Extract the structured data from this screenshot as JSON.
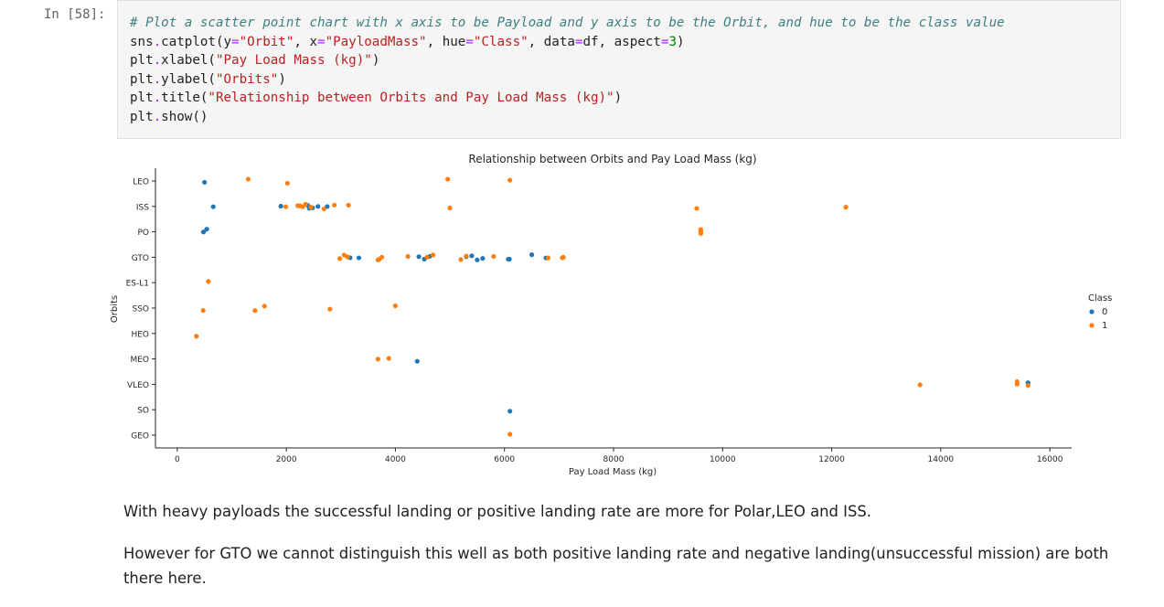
{
  "cell": {
    "prompt": "In [58]:",
    "code_lines": [
      [
        {
          "t": "# Plot a scatter point chart with x axis to be Payload and y axis to be the Orbit, and hue to be the class value",
          "c": "comment"
        }
      ],
      [
        {
          "t": "sns",
          "c": "name"
        },
        {
          "t": ".",
          "c": "op"
        },
        {
          "t": "catplot(y",
          "c": "name"
        },
        {
          "t": "=",
          "c": "op"
        },
        {
          "t": "\"Orbit\"",
          "c": "str"
        },
        {
          "t": ", x",
          "c": "name"
        },
        {
          "t": "=",
          "c": "op"
        },
        {
          "t": "\"PayloadMass\"",
          "c": "str"
        },
        {
          "t": ", hue",
          "c": "name"
        },
        {
          "t": "=",
          "c": "op"
        },
        {
          "t": "\"Class\"",
          "c": "str"
        },
        {
          "t": ", data",
          "c": "name"
        },
        {
          "t": "=",
          "c": "op"
        },
        {
          "t": "df, aspect",
          "c": "name"
        },
        {
          "t": "=",
          "c": "op"
        },
        {
          "t": "3",
          "c": "num"
        },
        {
          "t": ")",
          "c": "name"
        }
      ],
      [
        {
          "t": "plt",
          "c": "name"
        },
        {
          "t": ".",
          "c": "op"
        },
        {
          "t": "xlabel(",
          "c": "name"
        },
        {
          "t": "\"Pay Load Mass (kg)\"",
          "c": "str"
        },
        {
          "t": ")",
          "c": "name"
        }
      ],
      [
        {
          "t": "plt",
          "c": "name"
        },
        {
          "t": ".",
          "c": "op"
        },
        {
          "t": "ylabel(",
          "c": "name"
        },
        {
          "t": "\"Orbits\"",
          "c": "str"
        },
        {
          "t": ")",
          "c": "name"
        }
      ],
      [
        {
          "t": "plt",
          "c": "name"
        },
        {
          "t": ".",
          "c": "op"
        },
        {
          "t": "title(",
          "c": "name"
        },
        {
          "t": "\"Relationship between Orbits and Pay Load Mass (kg)\"",
          "c": "str"
        },
        {
          "t": ")",
          "c": "name"
        }
      ],
      [
        {
          "t": "plt",
          "c": "name"
        },
        {
          "t": ".",
          "c": "op"
        },
        {
          "t": "show()",
          "c": "name"
        }
      ]
    ]
  },
  "chart_data": {
    "type": "scatter",
    "title": "Relationship between Orbits and Pay Load Mass (kg)",
    "xlabel": "Pay Load Mass (kg)",
    "ylabel": "Orbits",
    "xlim": [
      -400,
      16400
    ],
    "xticks": [
      0,
      2000,
      4000,
      6000,
      8000,
      10000,
      12000,
      14000,
      16000
    ],
    "categories": [
      "LEO",
      "ISS",
      "PO",
      "GTO",
      "ES-L1",
      "SSO",
      "HEO",
      "MEO",
      "VLEO",
      "SO",
      "GEO"
    ],
    "grid": false,
    "legend": {
      "title": "Class",
      "placement": "right",
      "entries": [
        "0",
        "1"
      ]
    },
    "colors": {
      "0": "#1f77b4",
      "1": "#ff7f0e"
    },
    "series": [
      {
        "name": "0",
        "points": [
          {
            "x": 500,
            "y": "LEO"
          },
          {
            "x": 660,
            "y": "ISS"
          },
          {
            "x": 1900,
            "y": "ISS"
          },
          {
            "x": 2390,
            "y": "ISS"
          },
          {
            "x": 2420,
            "y": "ISS"
          },
          {
            "x": 2480,
            "y": "ISS"
          },
          {
            "x": 2580,
            "y": "ISS"
          },
          {
            "x": 2750,
            "y": "ISS"
          },
          {
            "x": 480,
            "y": "PO"
          },
          {
            "x": 540,
            "y": "PO"
          },
          {
            "x": 3170,
            "y": "GTO"
          },
          {
            "x": 3330,
            "y": "GTO"
          },
          {
            "x": 4430,
            "y": "GTO"
          },
          {
            "x": 4530,
            "y": "GTO"
          },
          {
            "x": 4630,
            "y": "GTO"
          },
          {
            "x": 5300,
            "y": "GTO"
          },
          {
            "x": 5400,
            "y": "GTO"
          },
          {
            "x": 5500,
            "y": "GTO"
          },
          {
            "x": 5600,
            "y": "GTO"
          },
          {
            "x": 6070,
            "y": "GTO"
          },
          {
            "x": 6090,
            "y": "GTO"
          },
          {
            "x": 6500,
            "y": "GTO"
          },
          {
            "x": 6760,
            "y": "GTO"
          },
          {
            "x": 4400,
            "y": "MEO"
          },
          {
            "x": 15600,
            "y": "VLEO"
          },
          {
            "x": 6100,
            "y": "SO"
          }
        ]
      },
      {
        "name": "1",
        "points": [
          {
            "x": 1300,
            "y": "LEO"
          },
          {
            "x": 2020,
            "y": "LEO"
          },
          {
            "x": 4960,
            "y": "LEO"
          },
          {
            "x": 6100,
            "y": "LEO"
          },
          {
            "x": 1990,
            "y": "ISS"
          },
          {
            "x": 2210,
            "y": "ISS"
          },
          {
            "x": 2250,
            "y": "ISS"
          },
          {
            "x": 2300,
            "y": "ISS"
          },
          {
            "x": 2350,
            "y": "ISS"
          },
          {
            "x": 2450,
            "y": "ISS"
          },
          {
            "x": 2690,
            "y": "ISS"
          },
          {
            "x": 2880,
            "y": "ISS"
          },
          {
            "x": 3140,
            "y": "ISS"
          },
          {
            "x": 5000,
            "y": "ISS"
          },
          {
            "x": 9525,
            "y": "ISS"
          },
          {
            "x": 12260,
            "y": "ISS"
          },
          {
            "x": 9600,
            "y": "PO"
          },
          {
            "x": 9600,
            "y": "PO"
          },
          {
            "x": 9600,
            "y": "PO"
          },
          {
            "x": 2980,
            "y": "GTO"
          },
          {
            "x": 3060,
            "y": "GTO"
          },
          {
            "x": 3120,
            "y": "GTO"
          },
          {
            "x": 3680,
            "y": "GTO"
          },
          {
            "x": 3700,
            "y": "GTO"
          },
          {
            "x": 3750,
            "y": "GTO"
          },
          {
            "x": 4230,
            "y": "GTO"
          },
          {
            "x": 4580,
            "y": "GTO"
          },
          {
            "x": 4690,
            "y": "GTO"
          },
          {
            "x": 5200,
            "y": "GTO"
          },
          {
            "x": 5300,
            "y": "GTO"
          },
          {
            "x": 5800,
            "y": "GTO"
          },
          {
            "x": 6800,
            "y": "GTO"
          },
          {
            "x": 7060,
            "y": "GTO"
          },
          {
            "x": 7080,
            "y": "GTO"
          },
          {
            "x": 570,
            "y": "ES-L1"
          },
          {
            "x": 475,
            "y": "SSO"
          },
          {
            "x": 1425,
            "y": "SSO"
          },
          {
            "x": 1600,
            "y": "SSO"
          },
          {
            "x": 2800,
            "y": "SSO"
          },
          {
            "x": 4000,
            "y": "SSO"
          },
          {
            "x": 350,
            "y": "HEO"
          },
          {
            "x": 3680,
            "y": "MEO"
          },
          {
            "x": 3880,
            "y": "MEO"
          },
          {
            "x": 13620,
            "y": "VLEO"
          },
          {
            "x": 15400,
            "y": "VLEO"
          },
          {
            "x": 15400,
            "y": "VLEO"
          },
          {
            "x": 15400,
            "y": "VLEO"
          },
          {
            "x": 15600,
            "y": "VLEO"
          },
          {
            "x": 6100,
            "y": "GEO"
          }
        ]
      }
    ]
  },
  "markdown": {
    "para1": "With heavy payloads the successful landing or positive landing rate are more for Polar,LEO and ISS.",
    "para2": "However for GTO we cannot distinguish this well as both positive landing rate and negative landing(unsuccessful mission) are both there here."
  }
}
